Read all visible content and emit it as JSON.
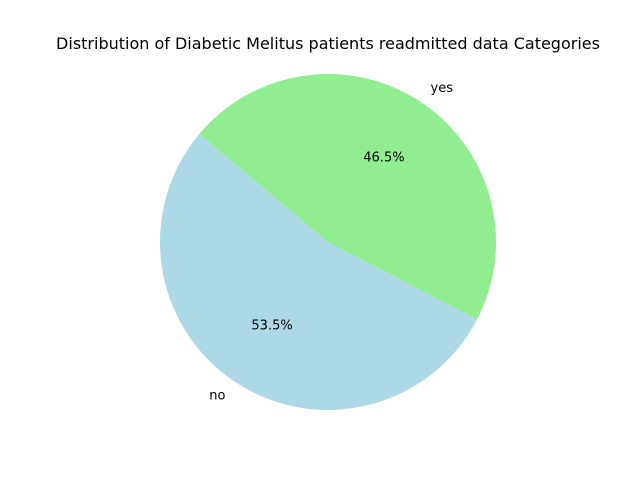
{
  "chart_data": {
    "type": "pie",
    "title": "Distribution of Diabetic Melitus patients readmitted data Categories",
    "start_angle_deg": 140,
    "direction": "counterclockwise",
    "slices": [
      {
        "label": "no",
        "value": 53.5,
        "pct_label": "53.5%",
        "color": "#add8e6"
      },
      {
        "label": "yes",
        "value": 46.5,
        "pct_label": "46.5%",
        "color": "#90ee90"
      }
    ]
  }
}
